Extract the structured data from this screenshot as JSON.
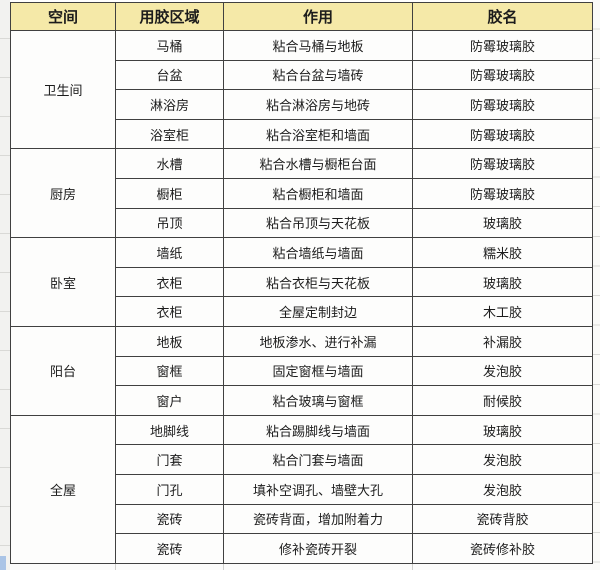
{
  "colors": {
    "header_bg": "#f5e9a8",
    "border": "#404040",
    "cell_bg": "#fdfdfc",
    "text": "#1c1c1c",
    "margin_bg": "#f2f2f0",
    "margin_line": "#d9d9d6",
    "corner_blue": "#aac4e6"
  },
  "table": {
    "headers": [
      "空间",
      "用胶区域",
      "作用",
      "胶名"
    ],
    "sections": [
      {
        "space": "卫生间",
        "rows": [
          {
            "area": "马桶",
            "use": "粘合马桶与地板",
            "glue": "防霉玻璃胶"
          },
          {
            "area": "台盆",
            "use": "粘合台盆与墙砖",
            "glue": "防霉玻璃胶"
          },
          {
            "area": "淋浴房",
            "use": "粘合淋浴房与地砖",
            "glue": "防霉玻璃胶"
          },
          {
            "area": "浴室柜",
            "use": "粘合浴室柜和墙面",
            "glue": "防霉玻璃胶"
          }
        ]
      },
      {
        "space": "厨房",
        "rows": [
          {
            "area": "水槽",
            "use": "粘合水槽与橱柜台面",
            "glue": "防霉玻璃胶"
          },
          {
            "area": "橱柜",
            "use": "粘合橱柜和墙面",
            "glue": "防霉玻璃胶"
          },
          {
            "area": "吊顶",
            "use": "粘合吊顶与天花板",
            "glue": "玻璃胶"
          }
        ]
      },
      {
        "space": "卧室",
        "rows": [
          {
            "area": "墙纸",
            "use": "粘合墙纸与墙面",
            "glue": "糯米胶"
          },
          {
            "area": "衣柜",
            "use": "粘合衣柜与天花板",
            "glue": "玻璃胶"
          },
          {
            "area": "衣柜",
            "use": "全屋定制封边",
            "glue": "木工胶"
          }
        ]
      },
      {
        "space": "阳台",
        "rows": [
          {
            "area": "地板",
            "use": "地板渗水、进行补漏",
            "glue": "补漏胶"
          },
          {
            "area": "窗框",
            "use": "固定窗框与墙面",
            "glue": "发泡胶"
          },
          {
            "area": "窗户",
            "use": "粘合玻璃与窗框",
            "glue": "耐候胶"
          }
        ]
      },
      {
        "space": "全屋",
        "rows": [
          {
            "area": "地脚线",
            "use": "粘合踢脚线与墙面",
            "glue": "玻璃胶"
          },
          {
            "area": "门套",
            "use": "粘合门套与墙面",
            "glue": "发泡胶"
          },
          {
            "area": "门孔",
            "use": "填补空调孔、墙壁大孔",
            "glue": "发泡胶"
          },
          {
            "area": "瓷砖",
            "use": "瓷砖背面，增加附着力",
            "glue": "瓷砖背胶"
          },
          {
            "area": "瓷砖",
            "use": "修补瓷砖开裂",
            "glue": "瓷砖修补胶"
          }
        ]
      }
    ]
  }
}
